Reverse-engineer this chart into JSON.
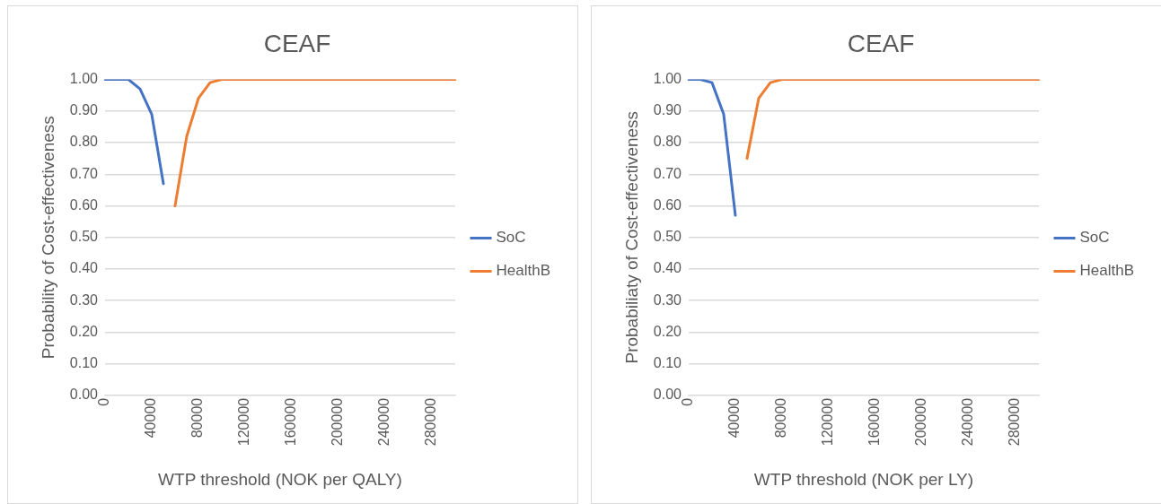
{
  "chart_data": [
    {
      "type": "line",
      "title": "CEAF",
      "xlabel": "WTP threshold (NOK per QALY)",
      "ylabel": "Probability of Cost-effectiveness",
      "categories": [
        "0",
        null,
        null,
        null,
        "40000",
        null,
        null,
        null,
        "80000",
        null,
        null,
        null,
        "120000",
        null,
        null,
        null,
        "160000",
        null,
        null,
        null,
        "200000",
        null,
        null,
        null,
        "240000",
        null,
        null,
        null,
        "280000",
        null,
        null
      ],
      "series": [
        {
          "name": "SoC",
          "color": "#4472c4",
          "values": [
            1.0,
            1.0,
            1.0,
            0.97,
            0.89,
            0.67,
            null,
            null,
            null,
            null,
            null,
            null,
            null,
            null,
            null,
            null,
            null,
            null,
            null,
            null,
            null,
            null,
            null,
            null,
            null,
            null,
            null,
            null,
            null,
            null,
            null
          ]
        },
        {
          "name": "HealthB",
          "color": "#ed7d31",
          "values": [
            null,
            null,
            null,
            null,
            null,
            null,
            0.6,
            0.82,
            0.94,
            0.99,
            1.0,
            1.0,
            1.0,
            1.0,
            1.0,
            1.0,
            1.0,
            1.0,
            1.0,
            1.0,
            1.0,
            1.0,
            1.0,
            1.0,
            1.0,
            1.0,
            1.0,
            1.0,
            1.0,
            1.0,
            1.0
          ]
        }
      ],
      "ylim": [
        0,
        1
      ],
      "yticks": [
        {
          "value": 0,
          "label": "0.00"
        },
        {
          "value": 0.1,
          "label": "0.10"
        },
        {
          "value": 0.2,
          "label": "0.20"
        },
        {
          "value": 0.3,
          "label": "0.30"
        },
        {
          "value": 0.4,
          "label": "0.40"
        },
        {
          "value": 0.5,
          "label": "0.50"
        },
        {
          "value": 0.6,
          "label": "0.60"
        },
        {
          "value": 0.7,
          "label": "0.70"
        },
        {
          "value": 0.8,
          "label": "0.80"
        },
        {
          "value": 0.9,
          "label": "0.90"
        },
        {
          "value": 1,
          "label": "1.00"
        }
      ],
      "grid": "y",
      "legend": "right",
      "marker": "none",
      "line_style": "solid"
    },
    {
      "type": "line",
      "title": "CEAF",
      "xlabel": "WTP threshold (NOK per LY)",
      "ylabel": "Probabiliaty of Cost-effectiveness",
      "categories": [
        "0",
        null,
        null,
        null,
        "40000",
        null,
        null,
        null,
        "80000",
        null,
        null,
        null,
        "120000",
        null,
        null,
        null,
        "160000",
        null,
        null,
        null,
        "200000",
        null,
        null,
        null,
        "240000",
        null,
        null,
        null,
        "280000",
        null,
        null
      ],
      "series": [
        {
          "name": "SoC",
          "color": "#4472c4",
          "values": [
            1.0,
            1.0,
            0.99,
            0.89,
            0.57,
            null,
            null,
            null,
            null,
            null,
            null,
            null,
            null,
            null,
            null,
            null,
            null,
            null,
            null,
            null,
            null,
            null,
            null,
            null,
            null,
            null,
            null,
            null,
            null,
            null,
            null
          ]
        },
        {
          "name": "HealthB",
          "color": "#ed7d31",
          "values": [
            null,
            null,
            null,
            null,
            null,
            0.75,
            0.94,
            0.99,
            1.0,
            1.0,
            1.0,
            1.0,
            1.0,
            1.0,
            1.0,
            1.0,
            1.0,
            1.0,
            1.0,
            1.0,
            1.0,
            1.0,
            1.0,
            1.0,
            1.0,
            1.0,
            1.0,
            1.0,
            1.0,
            1.0,
            1.0
          ]
        }
      ],
      "ylim": [
        0,
        1
      ],
      "yticks": [
        {
          "value": 0,
          "label": "0.00"
        },
        {
          "value": 0.1,
          "label": "0.10"
        },
        {
          "value": 0.2,
          "label": "0.20"
        },
        {
          "value": 0.3,
          "label": "0.30"
        },
        {
          "value": 0.4,
          "label": "0.40"
        },
        {
          "value": 0.5,
          "label": "0.50"
        },
        {
          "value": 0.6,
          "label": "0.60"
        },
        {
          "value": 0.7,
          "label": "0.70"
        },
        {
          "value": 0.8,
          "label": "0.80"
        },
        {
          "value": 0.9,
          "label": "0.90"
        },
        {
          "value": 1,
          "label": "1.00"
        }
      ],
      "grid": "y",
      "legend": "right",
      "marker": "none",
      "line_style": "solid"
    }
  ]
}
